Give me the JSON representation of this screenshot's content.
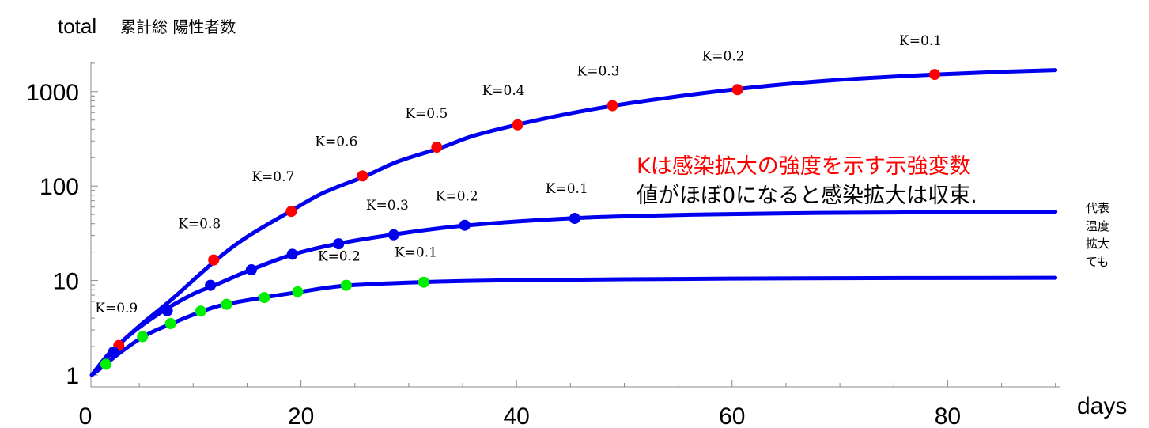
{
  "chart_data": {
    "type": "line",
    "ylabel": "total",
    "ylabel_sub": "累計総 陽性者数",
    "xlabel": "days",
    "xlim": [
      0,
      90
    ],
    "ylim": [
      0.8,
      2000
    ],
    "yscale": "log",
    "x_ticks": [
      0,
      20,
      40,
      60,
      80
    ],
    "y_ticks": [
      {
        "value": 1,
        "label": "1"
      },
      {
        "value": 10,
        "label": "10"
      },
      {
        "value": 100,
        "label": "100"
      },
      {
        "value": 1000,
        "label": "1000"
      }
    ],
    "series": [
      {
        "line_color": "#0000ee",
        "marker_color": "#ff0000",
        "curve": [
          [
            0.6,
            1.0
          ],
          [
            2,
            1.6
          ],
          [
            3,
            2.05
          ],
          [
            5,
            3.3
          ],
          [
            8,
            6.3
          ],
          [
            12,
            16
          ],
          [
            15,
            29
          ],
          [
            19,
            54
          ],
          [
            22,
            84
          ],
          [
            26,
            128
          ],
          [
            29,
            182
          ],
          [
            33,
            255
          ],
          [
            36,
            340
          ],
          [
            40,
            445
          ],
          [
            44,
            560
          ],
          [
            49,
            710
          ],
          [
            54,
            860
          ],
          [
            60,
            1050
          ],
          [
            66,
            1230
          ],
          [
            72,
            1380
          ],
          [
            79,
            1520
          ],
          [
            85,
            1620
          ],
          [
            90,
            1690
          ]
        ],
        "points": [
          {
            "x": 3.1,
            "y": 2.05,
            "k": "K=0.9"
          },
          {
            "x": 11.9,
            "y": 16.5,
            "k": "K=0.8"
          },
          {
            "x": 19.1,
            "y": 54,
            "k": "K=0.7"
          },
          {
            "x": 25.7,
            "y": 128,
            "k": "K=0.6"
          },
          {
            "x": 32.6,
            "y": 258,
            "k": "K=0.5"
          },
          {
            "x": 40.1,
            "y": 445,
            "k": "K=0.4"
          },
          {
            "x": 48.9,
            "y": 710,
            "k": "K=0.3"
          },
          {
            "x": 60.5,
            "y": 1050,
            "k": "K=0.2"
          },
          {
            "x": 78.8,
            "y": 1520,
            "k": "K=0.1"
          }
        ]
      },
      {
        "line_color": "#0000ee",
        "marker_color": "#0000ee",
        "curve": [
          [
            0.6,
            1.0
          ],
          [
            2.5,
            1.75
          ],
          [
            4,
            2.6
          ],
          [
            7,
            4.6
          ],
          [
            10,
            7.2
          ],
          [
            12,
            8.9
          ],
          [
            15,
            12.5
          ],
          [
            19,
            18.5
          ],
          [
            23,
            24
          ],
          [
            28,
            30
          ],
          [
            35,
            38
          ],
          [
            45,
            45.5
          ],
          [
            55,
            49.5
          ],
          [
            65,
            51.5
          ],
          [
            75,
            52.5
          ],
          [
            90,
            53.5
          ]
        ],
        "points": [
          {
            "x": 2.6,
            "y": 1.75,
            "k": ""
          },
          {
            "x": 7.6,
            "y": 4.8,
            "k": ""
          },
          {
            "x": 11.6,
            "y": 8.9,
            "k": ""
          },
          {
            "x": 15.4,
            "y": 13,
            "k": ""
          },
          {
            "x": 19.2,
            "y": 19,
            "k": ""
          },
          {
            "x": 23.5,
            "y": 24.5,
            "k": ""
          },
          {
            "x": 28.6,
            "y": 30.5,
            "k": "K=0.3"
          },
          {
            "x": 35.2,
            "y": 38.5,
            "k": "K=0.2"
          },
          {
            "x": 45.4,
            "y": 45.5,
            "k": "K=0.1"
          }
        ]
      },
      {
        "line_color": "#0000ee",
        "marker_color": "#00ee00",
        "curve": [
          [
            0.6,
            1.0
          ],
          [
            1.9,
            1.3
          ],
          [
            3,
            1.65
          ],
          [
            5.5,
            2.6
          ],
          [
            8,
            3.5
          ],
          [
            11,
            4.8
          ],
          [
            13,
            5.6
          ],
          [
            16.5,
            6.6
          ],
          [
            20,
            7.6
          ],
          [
            24,
            8.8
          ],
          [
            31,
            9.6
          ],
          [
            40,
            10.1
          ],
          [
            55,
            10.4
          ],
          [
            70,
            10.6
          ],
          [
            90,
            10.7
          ]
        ],
        "points": [
          {
            "x": 1.9,
            "y": 1.3,
            "k": ""
          },
          {
            "x": 5.3,
            "y": 2.55,
            "k": ""
          },
          {
            "x": 7.9,
            "y": 3.5,
            "k": ""
          },
          {
            "x": 10.7,
            "y": 4.75,
            "k": ""
          },
          {
            "x": 13.1,
            "y": 5.6,
            "k": ""
          },
          {
            "x": 16.6,
            "y": 6.6,
            "k": ""
          },
          {
            "x": 19.7,
            "y": 7.6,
            "k": ""
          },
          {
            "x": 24.2,
            "y": 8.9,
            "k": "K=0.2"
          },
          {
            "x": 31.4,
            "y": 9.6,
            "k": "K=0.1"
          }
        ]
      }
    ],
    "annotations": {
      "red_note": "Kは感染拡大の強度を示す示強変数",
      "black_note": "値がほぼ0になると感染拡大は収束.",
      "side_note_lines": [
        "代表",
        "温度",
        "拡大",
        "ても"
      ]
    }
  }
}
